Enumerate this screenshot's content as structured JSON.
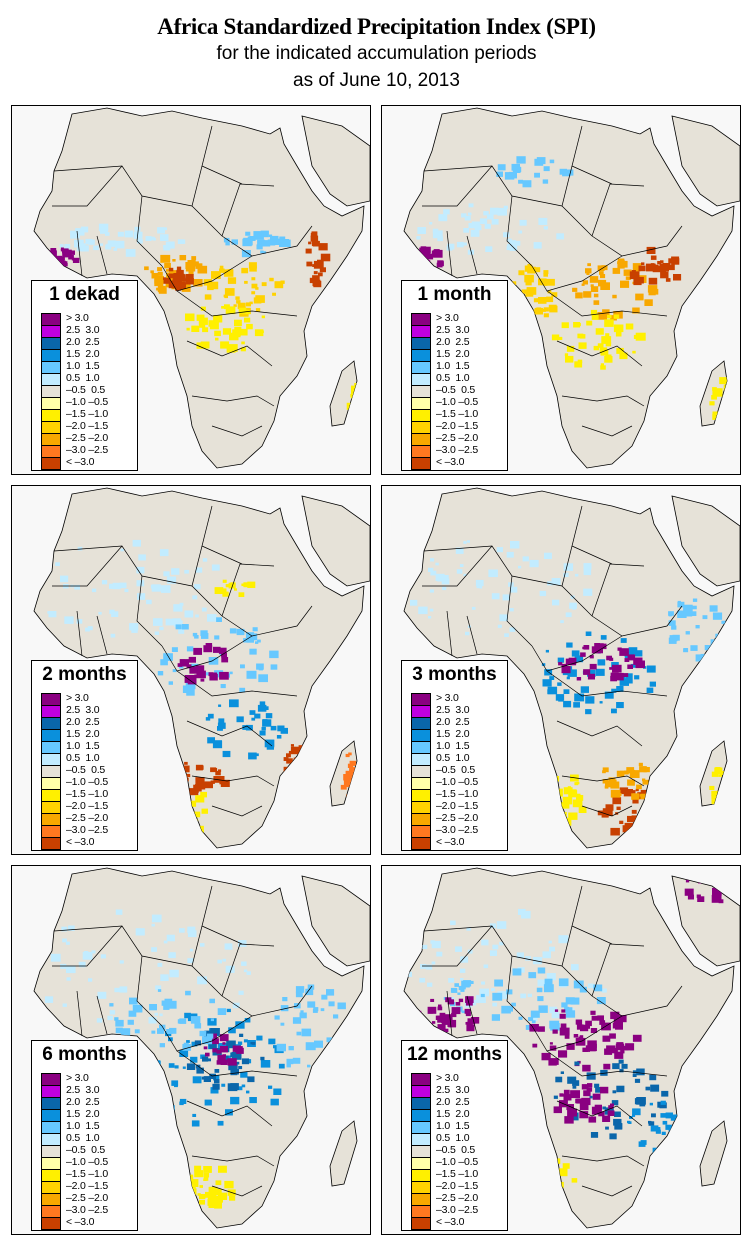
{
  "header": {
    "title": "Africa Standardized Precipitation Index (SPI)",
    "subtitle": "for the indicated accumulation periods",
    "date_line": "as of June 10, 2013"
  },
  "legend": {
    "classes": [
      {
        "label": "> 3.0",
        "color": "#8a0081"
      },
      {
        "label": "2.5  3.0",
        "color": "#c000e0"
      },
      {
        "label": "2.0  2.5",
        "color": "#0a66aa"
      },
      {
        "label": "1.5  2.0",
        "color": "#0a90dc"
      },
      {
        "label": "1.0  1.5",
        "color": "#66c8ff"
      },
      {
        "label": "0.5  1.0",
        "color": "#c2ecff"
      },
      {
        "label": "–0.5  0.5",
        "color": "#e6e2d8"
      },
      {
        "label": "–1.0 –0.5",
        "color": "#ffffa8"
      },
      {
        "label": "–1.5 –1.0",
        "color": "#fff000"
      },
      {
        "label": "–2.0 –1.5",
        "color": "#ffd200"
      },
      {
        "label": "–2.5 –2.0",
        "color": "#f8a800"
      },
      {
        "label": "–3.0 –2.5",
        "color": "#ff7820"
      },
      {
        "label": "< –3.0",
        "color": "#c84000"
      }
    ]
  },
  "colors": {
    "land_neutral": "#e6e2d8",
    "water_background": "#f8f8f8",
    "borders": "#000000"
  },
  "panels": [
    {
      "period": "1 dekad",
      "dominant_anomaly": "dry Central/East Africa, wet West African coast"
    },
    {
      "period": "1 month",
      "dominant_anomaly": "dry Central/East Africa and Mozambique"
    },
    {
      "period": "2 months",
      "dominant_anomaly": "wet Central Africa, dry Angola/Mozambique"
    },
    {
      "period": "3 months",
      "dominant_anomaly": "wet Central Africa, dry southern Africa"
    },
    {
      "period": "6 months",
      "dominant_anomaly": "wet across much of the continent"
    },
    {
      "period": "12 months",
      "dominant_anomaly": "very wet Central and West Africa"
    }
  ]
}
